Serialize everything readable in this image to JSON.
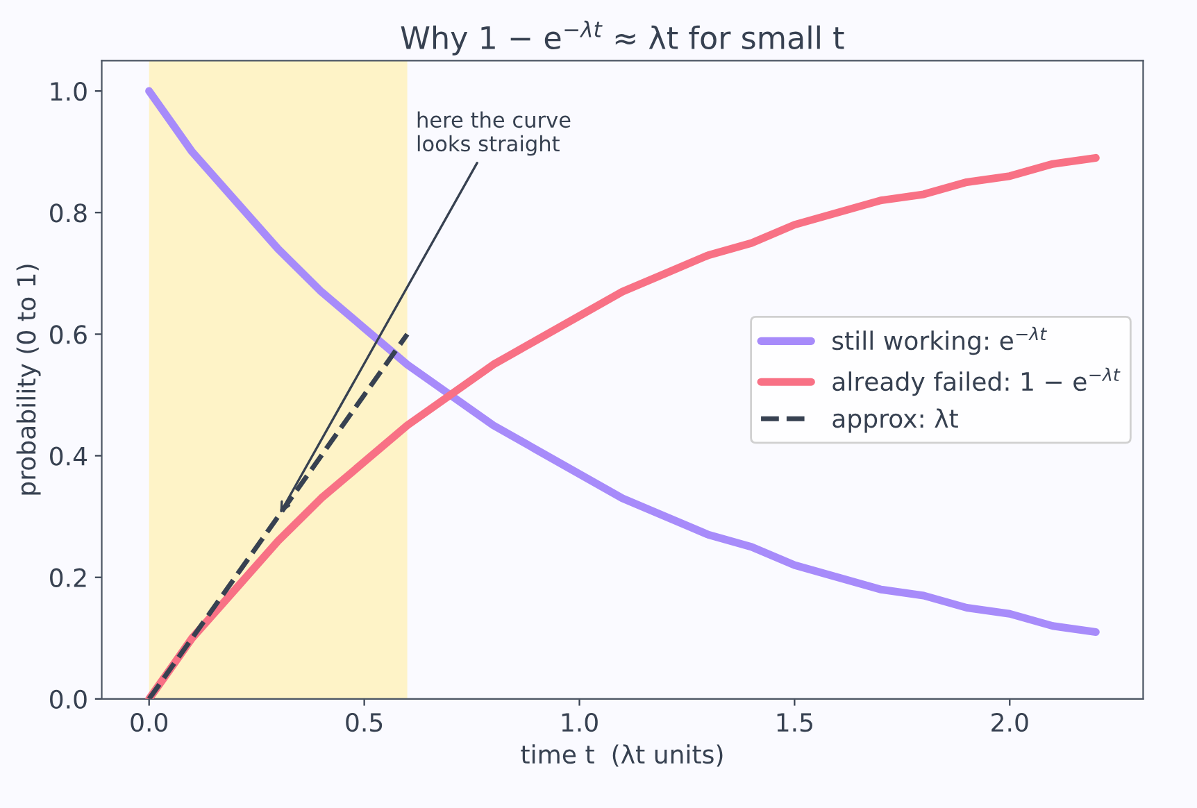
{
  "chart_data": {
    "type": "line",
    "title": "Why 1 − e$^{−λt}$ ≈ λt for small t",
    "xlabel": "time t  (λt units)",
    "ylabel": "probability (0 to 1)",
    "x": [
      0,
      0.1,
      0.2,
      0.3,
      0.4,
      0.5,
      0.6,
      0.7,
      0.8,
      0.9,
      1.0,
      1.1,
      1.2,
      1.3,
      1.4,
      1.5,
      1.6,
      1.7,
      1.8,
      1.9,
      2.0,
      2.1,
      2.2
    ],
    "series": [
      {
        "name": "still working: e$^{−λt}$",
        "color": "#a78bfa",
        "values": [
          1.0,
          0.9,
          0.82,
          0.74,
          0.67,
          0.61,
          0.55,
          0.5,
          0.45,
          0.41,
          0.37,
          0.33,
          0.3,
          0.27,
          0.25,
          0.22,
          0.2,
          0.18,
          0.17,
          0.15,
          0.14,
          0.12,
          0.11
        ]
      },
      {
        "name": "already failed: 1 − e$^{−λt}$",
        "color": "#f87185",
        "values": [
          0.0,
          0.1,
          0.18,
          0.26,
          0.33,
          0.39,
          0.45,
          0.5,
          0.55,
          0.59,
          0.63,
          0.67,
          0.7,
          0.73,
          0.75,
          0.78,
          0.8,
          0.82,
          0.83,
          0.85,
          0.86,
          0.88,
          0.89
        ]
      },
      {
        "name": "approx: λt",
        "color": "#374151",
        "x": [
          0,
          0.6
        ],
        "values": [
          0.0,
          0.6
        ],
        "line_style": "dashed"
      }
    ],
    "bands": [
      {
        "axis": "x",
        "from": 0,
        "to": 0.6,
        "color": "#fef3c7"
      }
    ],
    "annotations": [
      {
        "text": "here the curve\nlooks straight",
        "x": 0.3,
        "y": 0.3
      }
    ],
    "xlim": [
      -0.11,
      2.31
    ],
    "ylim": [
      0,
      1.05
    ],
    "xticks": [
      {
        "value": 0,
        "label": "0.0"
      },
      {
        "value": 0.5,
        "label": "0.5"
      },
      {
        "value": 1,
        "label": "1.0"
      },
      {
        "value": 1.5,
        "label": "1.5"
      },
      {
        "value": 2,
        "label": "2.0"
      }
    ],
    "yticks": [
      {
        "value": 0,
        "label": "0.0"
      },
      {
        "value": 0.2,
        "label": "0.2"
      },
      {
        "value": 0.4,
        "label": "0.4"
      },
      {
        "value": 0.6,
        "label": "0.6"
      },
      {
        "value": 0.8,
        "label": "0.8"
      },
      {
        "value": 1,
        "label": "1.0"
      }
    ],
    "legend": "right",
    "grid": false
  }
}
